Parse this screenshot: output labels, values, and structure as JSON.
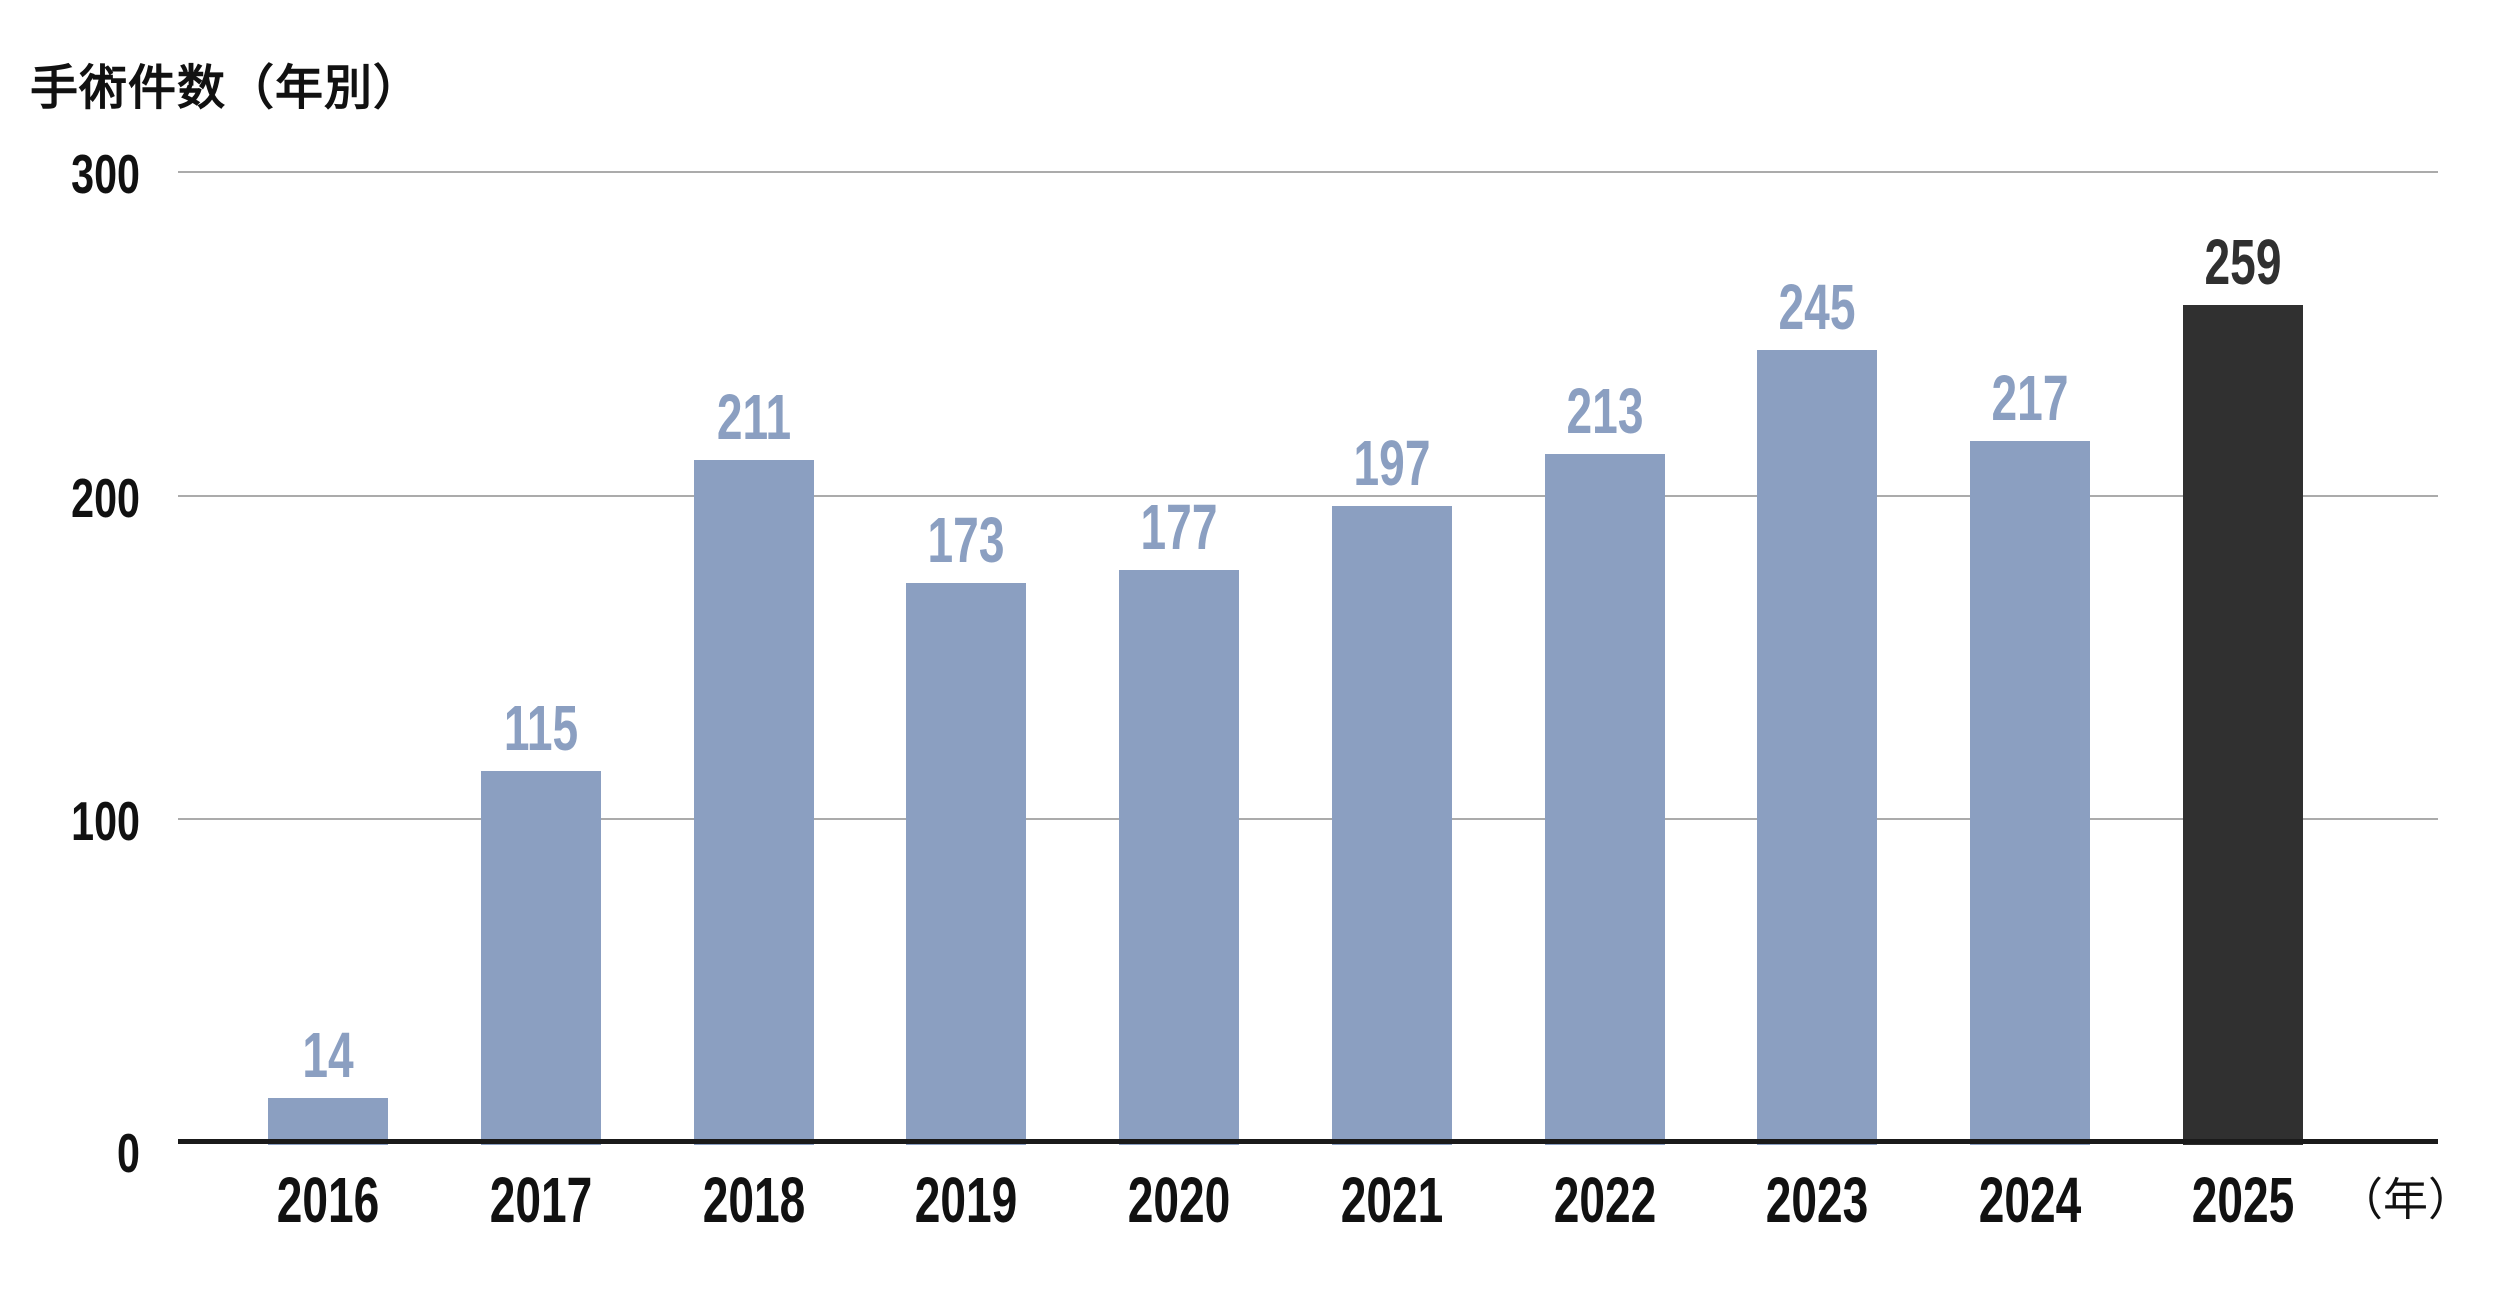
{
  "title": "手術件数（年別）",
  "x_axis_unit": "（年）",
  "colors": {
    "bar": "#8b9fc1",
    "highlight_bar": "#303030",
    "value_label": "#8b9fc1",
    "highlight_value_label": "#303030",
    "gridline": "#ababab",
    "axis": "#1a1a1a",
    "text": "#111111",
    "background": "#ffffff"
  },
  "chart_data": {
    "type": "bar",
    "title": "手術件数（年別）",
    "xlabel": "（年）",
    "ylabel": "",
    "categories": [
      "2016",
      "2017",
      "2018",
      "2019",
      "2020",
      "2021",
      "2022",
      "2023",
      "2024",
      "2025"
    ],
    "values": [
      14,
      115,
      211,
      173,
      177,
      197,
      213,
      245,
      217,
      259
    ],
    "ylim": [
      0,
      300
    ],
    "yticks": [
      0,
      100,
      200,
      300
    ],
    "grid": true,
    "legend": false,
    "value_labels": true,
    "highlight_index": 9
  }
}
